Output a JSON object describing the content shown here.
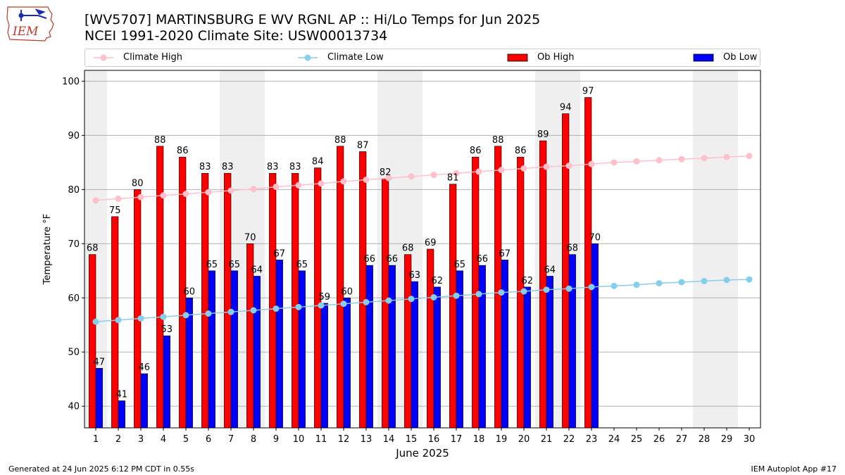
{
  "header": {
    "title_line1": "[WV5707] MARTINSBURG E WV RGNL AP :: Hi/Lo Temps for Jun 2025",
    "title_line2": "NCEI 1991-2020 Climate Site: USW00013734",
    "logo_text": "IEM"
  },
  "footer": {
    "generated": "Generated at 24 Jun 2025 6:12 PM CDT in 0.55s",
    "app": "IEM Autoplot App #17"
  },
  "colors": {
    "ob_high": "#ff0000",
    "ob_low": "#0000ff",
    "climate_high": "#ffc0cb",
    "climate_low": "#87ceeb",
    "weekend_band": "#efefef",
    "grid": "#b0b0b0"
  },
  "chart_data": {
    "type": "bar",
    "xlabel": "June 2025",
    "ylabel": "Temperature °F",
    "xlim": [
      0.5,
      30.5
    ],
    "ylim": [
      36,
      102
    ],
    "yticks": [
      40,
      50,
      60,
      70,
      80,
      90,
      100
    ],
    "grid": "horizontal",
    "legend_position": "top",
    "weekend_days": [
      1,
      7,
      8,
      14,
      15,
      21,
      22,
      28,
      29
    ],
    "days": [
      1,
      2,
      3,
      4,
      5,
      6,
      7,
      8,
      9,
      10,
      11,
      12,
      13,
      14,
      15,
      16,
      17,
      18,
      19,
      20,
      21,
      22,
      23,
      24,
      25,
      26,
      27,
      28,
      29,
      30
    ],
    "series": [
      {
        "name": "Ob High",
        "kind": "bar",
        "days": [
          1,
          2,
          3,
          4,
          5,
          6,
          7,
          8,
          9,
          10,
          11,
          12,
          13,
          14,
          15,
          16,
          17,
          18,
          19,
          20,
          21,
          22,
          23
        ],
        "values": [
          68,
          75,
          80,
          88,
          86,
          83,
          83,
          70,
          83,
          83,
          84,
          88,
          87,
          82,
          68,
          69,
          81,
          86,
          88,
          86,
          89,
          94,
          97
        ]
      },
      {
        "name": "Ob Low",
        "kind": "bar",
        "days": [
          1,
          2,
          3,
          4,
          5,
          6,
          7,
          8,
          9,
          10,
          11,
          12,
          13,
          14,
          15,
          16,
          17,
          18,
          19,
          20,
          21,
          22,
          23
        ],
        "values": [
          47,
          41,
          46,
          53,
          60,
          65,
          65,
          64,
          67,
          65,
          59,
          60,
          66,
          66,
          63,
          62,
          65,
          66,
          67,
          62,
          64,
          68,
          70
        ]
      },
      {
        "name": "Climate High",
        "kind": "line",
        "days": [
          1,
          2,
          3,
          4,
          5,
          6,
          7,
          8,
          9,
          10,
          11,
          12,
          13,
          14,
          15,
          16,
          17,
          18,
          19,
          20,
          21,
          22,
          23,
          24,
          25,
          26,
          27,
          28,
          29,
          30
        ],
        "values": [
          78.0,
          78.3,
          78.6,
          78.9,
          79.2,
          79.5,
          79.8,
          80.1,
          80.5,
          80.8,
          81.1,
          81.5,
          81.8,
          82.1,
          82.4,
          82.7,
          83.0,
          83.3,
          83.6,
          83.9,
          84.2,
          84.4,
          84.7,
          85.0,
          85.2,
          85.4,
          85.6,
          85.8,
          86.0,
          86.2
        ]
      },
      {
        "name": "Climate Low",
        "kind": "line",
        "days": [
          1,
          2,
          3,
          4,
          5,
          6,
          7,
          8,
          9,
          10,
          11,
          12,
          13,
          14,
          15,
          16,
          17,
          18,
          19,
          20,
          21,
          22,
          23,
          24,
          25,
          26,
          27,
          28,
          29,
          30
        ],
        "values": [
          55.6,
          55.9,
          56.2,
          56.5,
          56.8,
          57.1,
          57.4,
          57.7,
          58.0,
          58.3,
          58.6,
          58.9,
          59.2,
          59.5,
          59.8,
          60.1,
          60.4,
          60.7,
          61.0,
          61.2,
          61.5,
          61.7,
          62.0,
          62.2,
          62.4,
          62.7,
          62.9,
          63.1,
          63.3,
          63.4
        ]
      }
    ]
  }
}
